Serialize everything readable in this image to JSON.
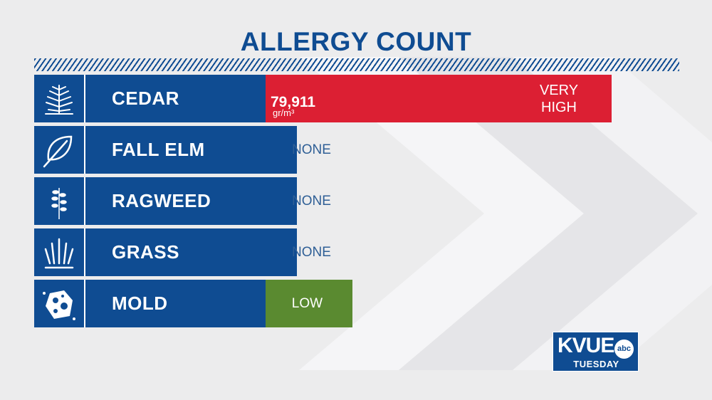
{
  "title": "ALLERGY COUNT",
  "colors": {
    "brand_blue": "#0f4c92",
    "very_high": "#dc1f33",
    "low": "#5a8a30",
    "none": "#0f4c92"
  },
  "chart_data": {
    "type": "bar",
    "orientation": "horizontal",
    "title": "ALLERGY COUNT",
    "categories": [
      "CEDAR",
      "FALL ELM",
      "RAGWEED",
      "GRASS",
      "MOLD"
    ],
    "levels": [
      "VERY HIGH",
      "NONE",
      "NONE",
      "NONE",
      "LOW"
    ],
    "level_scale": {
      "NONE": 0,
      "LOW": 1,
      "VERY HIGH": 4
    },
    "cedar_value": "79,911",
    "cedar_unit": "gr/m³",
    "icons": [
      "cedar-tree-icon",
      "leaf-icon",
      "ragweed-icon",
      "grass-icon",
      "mold-spore-icon"
    ]
  },
  "logo": {
    "station": "KVUE",
    "network": "abc",
    "day": "TUESDAY"
  }
}
